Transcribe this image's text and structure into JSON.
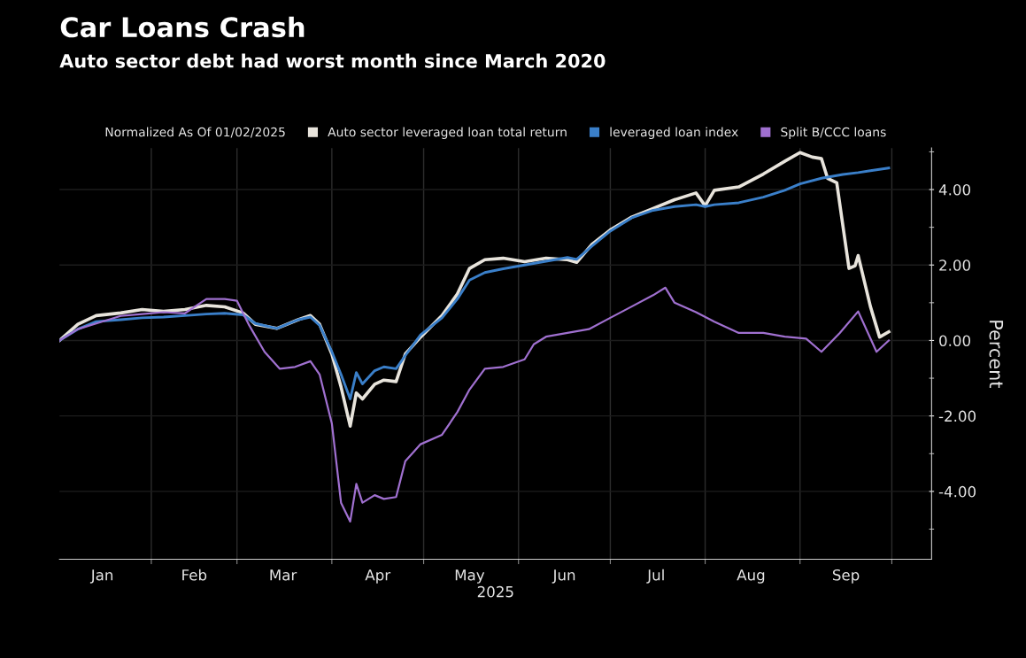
{
  "chart_data": {
    "type": "line",
    "title": "Car Loans Crash",
    "subtitle": "Auto sector debt had worst month since March 2020",
    "legend_title": "Normalized As Of 01/02/2025",
    "xlabel": "2025",
    "ylabel": "Percent",
    "xlim": [
      "2025-01-02",
      "2025-10-14"
    ],
    "xticks": [
      {
        "value": "2025-01-16",
        "label": "Jan"
      },
      {
        "value": "2025-02-01",
        "label": null
      },
      {
        "value": "2025-02-15",
        "label": "Feb"
      },
      {
        "value": "2025-03-01",
        "label": null
      },
      {
        "value": "2025-03-16",
        "label": "Mar"
      },
      {
        "value": "2025-04-01",
        "label": null
      },
      {
        "value": "2025-04-16",
        "label": "Apr"
      },
      {
        "value": "2025-05-01",
        "label": null
      },
      {
        "value": "2025-05-16",
        "label": "May"
      },
      {
        "value": "2025-06-01",
        "label": null
      },
      {
        "value": "2025-06-16",
        "label": "Jun"
      },
      {
        "value": "2025-07-01",
        "label": null
      },
      {
        "value": "2025-07-16",
        "label": "Jul"
      },
      {
        "value": "2025-08-01",
        "label": null
      },
      {
        "value": "2025-08-16",
        "label": "Aug"
      },
      {
        "value": "2025-09-01",
        "label": null
      },
      {
        "value": "2025-09-16",
        "label": "Sep"
      },
      {
        "value": "2025-10-01",
        "label": null
      }
    ],
    "ylim": [
      -5.8,
      5.1
    ],
    "yticks": [
      {
        "value": -5,
        "label": null
      },
      {
        "value": -4,
        "label": "-4.00"
      },
      {
        "value": -3,
        "label": null
      },
      {
        "value": -2,
        "label": "-2.00"
      },
      {
        "value": -1,
        "label": null
      },
      {
        "value": 0,
        "label": "0.00"
      },
      {
        "value": 1,
        "label": null
      },
      {
        "value": 2,
        "label": "2.00"
      },
      {
        "value": 3,
        "label": null
      },
      {
        "value": 4,
        "label": "4.00"
      },
      {
        "value": 5,
        "label": null
      }
    ],
    "grid": true,
    "legend": "top",
    "series": [
      {
        "name": "Auto sector leveraged loan total return",
        "color": "#e8e4dc",
        "x": [
          "2025-01-02",
          "2025-01-08",
          "2025-01-14",
          "2025-01-22",
          "2025-01-29",
          "2025-02-05",
          "2025-02-12",
          "2025-02-19",
          "2025-02-25",
          "2025-03-03",
          "2025-03-07",
          "2025-03-14",
          "2025-03-21",
          "2025-03-25",
          "2025-03-28",
          "2025-04-01",
          "2025-04-04",
          "2025-04-07",
          "2025-04-09",
          "2025-04-11",
          "2025-04-15",
          "2025-04-18",
          "2025-04-22",
          "2025-04-25",
          "2025-04-30",
          "2025-05-07",
          "2025-05-12",
          "2025-05-16",
          "2025-05-21",
          "2025-05-27",
          "2025-06-03",
          "2025-06-10",
          "2025-06-17",
          "2025-06-20",
          "2025-06-25",
          "2025-07-01",
          "2025-07-08",
          "2025-07-15",
          "2025-07-22",
          "2025-07-29",
          "2025-08-01",
          "2025-08-04",
          "2025-08-12",
          "2025-08-20",
          "2025-08-27",
          "2025-09-01",
          "2025-09-05",
          "2025-09-08",
          "2025-09-10",
          "2025-09-13",
          "2025-09-17",
          "2025-09-19",
          "2025-09-20",
          "2025-09-24",
          "2025-09-27",
          "2025-09-30"
        ],
        "values": [
          0,
          0.43,
          0.66,
          0.73,
          0.82,
          0.77,
          0.82,
          0.93,
          0.89,
          0.73,
          0.43,
          0.32,
          0.55,
          0.66,
          0.43,
          -0.36,
          -1.23,
          -2.27,
          -1.39,
          -1.55,
          -1.16,
          -1.05,
          -1.09,
          -0.36,
          0.09,
          0.66,
          1.23,
          1.91,
          2.14,
          2.18,
          2.09,
          2.18,
          2.14,
          2.07,
          2.55,
          2.93,
          3.27,
          3.5,
          3.73,
          3.91,
          3.57,
          3.98,
          4.07,
          4.41,
          4.75,
          4.98,
          4.86,
          4.82,
          4.3,
          4.18,
          1.91,
          1.98,
          2.25,
          0.9,
          0.09,
          0.23
        ]
      },
      {
        "name": "leveraged loan index",
        "color": "#3a7fc9",
        "x": [
          "2025-01-02",
          "2025-01-08",
          "2025-01-14",
          "2025-01-22",
          "2025-01-29",
          "2025-02-05",
          "2025-02-12",
          "2025-02-19",
          "2025-02-25",
          "2025-03-03",
          "2025-03-07",
          "2025-03-14",
          "2025-03-21",
          "2025-03-25",
          "2025-03-28",
          "2025-04-01",
          "2025-04-04",
          "2025-04-07",
          "2025-04-09",
          "2025-04-11",
          "2025-04-15",
          "2025-04-18",
          "2025-04-22",
          "2025-04-25",
          "2025-04-30",
          "2025-05-07",
          "2025-05-12",
          "2025-05-16",
          "2025-05-21",
          "2025-05-27",
          "2025-06-03",
          "2025-06-10",
          "2025-06-17",
          "2025-06-20",
          "2025-06-25",
          "2025-07-01",
          "2025-07-08",
          "2025-07-15",
          "2025-07-22",
          "2025-07-29",
          "2025-08-01",
          "2025-08-04",
          "2025-08-12",
          "2025-08-20",
          "2025-08-27",
          "2025-09-01",
          "2025-09-08",
          "2025-09-15",
          "2025-09-20",
          "2025-09-24",
          "2025-09-30"
        ],
        "values": [
          0,
          0.3,
          0.5,
          0.55,
          0.6,
          0.62,
          0.66,
          0.7,
          0.72,
          0.68,
          0.45,
          0.32,
          0.55,
          0.62,
          0.4,
          -0.3,
          -0.9,
          -1.55,
          -0.85,
          -1.15,
          -0.8,
          -0.7,
          -0.75,
          -0.4,
          0.15,
          0.6,
          1.1,
          1.6,
          1.8,
          1.9,
          2.0,
          2.1,
          2.2,
          2.15,
          2.5,
          2.9,
          3.25,
          3.45,
          3.55,
          3.6,
          3.55,
          3.6,
          3.65,
          3.8,
          3.98,
          4.15,
          4.3,
          4.4,
          4.45,
          4.5,
          4.57
        ]
      },
      {
        "name": "Split B/CCC loans",
        "color": "#a070d0",
        "x": [
          "2025-01-02",
          "2025-01-08",
          "2025-01-14",
          "2025-01-22",
          "2025-01-29",
          "2025-02-05",
          "2025-02-12",
          "2025-02-19",
          "2025-02-25",
          "2025-03-01",
          "2025-03-05",
          "2025-03-10",
          "2025-03-15",
          "2025-03-20",
          "2025-03-25",
          "2025-03-28",
          "2025-04-01",
          "2025-04-04",
          "2025-04-07",
          "2025-04-09",
          "2025-04-11",
          "2025-04-15",
          "2025-04-18",
          "2025-04-22",
          "2025-04-25",
          "2025-04-30",
          "2025-05-07",
          "2025-05-12",
          "2025-05-16",
          "2025-05-21",
          "2025-05-27",
          "2025-06-03",
          "2025-06-06",
          "2025-06-10",
          "2025-06-17",
          "2025-06-24",
          "2025-07-01",
          "2025-07-08",
          "2025-07-15",
          "2025-07-19",
          "2025-07-22",
          "2025-07-29",
          "2025-08-04",
          "2025-08-12",
          "2025-08-20",
          "2025-08-27",
          "2025-09-03",
          "2025-09-08",
          "2025-09-14",
          "2025-09-20",
          "2025-09-26",
          "2025-09-30"
        ],
        "values": [
          0,
          0.3,
          0.45,
          0.65,
          0.7,
          0.75,
          0.72,
          1.1,
          1.1,
          1.05,
          0.4,
          -0.3,
          -0.75,
          -0.7,
          -0.55,
          -0.9,
          -2.2,
          -4.3,
          -4.8,
          -3.8,
          -4.3,
          -4.1,
          -4.2,
          -4.15,
          -3.2,
          -2.75,
          -2.5,
          -1.9,
          -1.3,
          -0.75,
          -0.7,
          -0.5,
          -0.1,
          0.1,
          0.2,
          0.3,
          0.6,
          0.9,
          1.2,
          1.4,
          1.0,
          0.75,
          0.5,
          0.2,
          0.2,
          0.1,
          0.05,
          -0.3,
          0.2,
          0.77,
          -0.3,
          0.0
        ]
      }
    ]
  }
}
